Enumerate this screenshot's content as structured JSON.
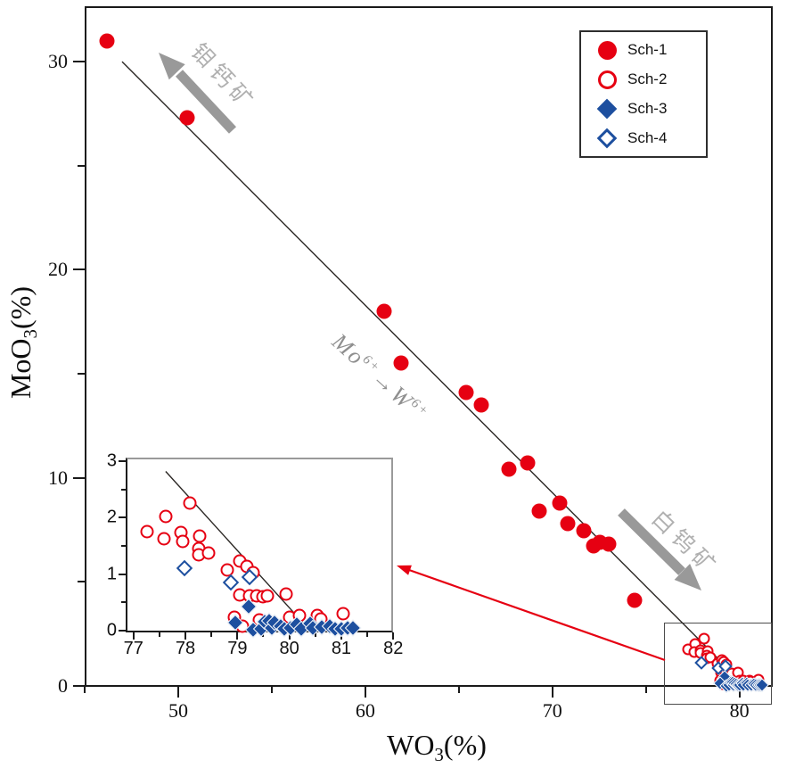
{
  "colors": {
    "red": "#e60012",
    "blue": "#1d4f9f",
    "axis": "#1a1a1a",
    "trend_line": "#2b2724",
    "gray_arrow": "#999999",
    "gray_text": "#b0b0b0",
    "substitution_text": "#8f8f8f"
  },
  "axes": {
    "x": {
      "title_pre": "WO",
      "title_sub": "3",
      "title_post": "(%)",
      "major_ticks": [
        50,
        60,
        70,
        80
      ],
      "minor_ticks": [
        45,
        55,
        65,
        75
      ],
      "range": [
        45,
        81.8
      ]
    },
    "y": {
      "title_pre": "MoO",
      "title_sub": "3",
      "title_post": "(%)",
      "major_ticks": [
        0,
        10,
        20,
        30
      ],
      "minor_ticks": [
        5,
        15,
        25
      ],
      "range": [
        0,
        32.6
      ]
    }
  },
  "inset": {
    "x_major_ticks": [
      77,
      78,
      79,
      80,
      81,
      82
    ],
    "x_minor_ticks": [
      77.5,
      78.5,
      79.5,
      80.5,
      81.5
    ],
    "y_major_ticks": [
      0,
      1,
      2,
      3
    ],
    "y_minor_ticks": [
      0.5,
      1.5,
      2.5
    ],
    "x_range": [
      77,
      82
    ],
    "y_range": [
      0,
      3
    ]
  },
  "legend": {
    "items": [
      {
        "label": "Sch-1",
        "marker": "filled-circle",
        "color": "#e60012"
      },
      {
        "label": "Sch-2",
        "marker": "open-circle",
        "color": "#e60012"
      },
      {
        "label": "Sch-3",
        "marker": "filled-diamond",
        "color": "#1d4f9f"
      },
      {
        "label": "Sch-4",
        "marker": "open-diamond",
        "color": "#1d4f9f"
      }
    ]
  },
  "annotations": {
    "powellite": "钼钙矿",
    "scheelite": "白钨矿",
    "substitution": {
      "el1": "Mo",
      "sup1": "6+",
      "arrow": "→",
      "el2": "W",
      "sup2": "6+"
    }
  },
  "chart_data": {
    "type": "scatter",
    "xlabel": "WO3(%)",
    "ylabel": "MoO3(%)",
    "x_range_main": [
      45,
      81.8
    ],
    "y_range_main": [
      0,
      32.6
    ],
    "inset_x_range": [
      77,
      82
    ],
    "inset_y_range": [
      0,
      3
    ],
    "series": [
      {
        "name": "Sch-1",
        "marker": "filled-circle",
        "color": "#e60012",
        "in_inset": false,
        "points": [
          [
            46.2,
            31.0
          ],
          [
            50.5,
            27.3
          ],
          [
            61.0,
            18.0
          ],
          [
            61.9,
            15.5
          ],
          [
            65.4,
            14.1
          ],
          [
            66.2,
            13.5
          ],
          [
            67.7,
            10.4
          ],
          [
            68.7,
            10.7
          ],
          [
            69.3,
            8.4
          ],
          [
            70.4,
            8.8
          ],
          [
            70.8,
            7.8
          ],
          [
            71.7,
            7.45
          ],
          [
            72.2,
            6.75
          ],
          [
            72.55,
            6.9
          ],
          [
            73.0,
            6.8
          ],
          [
            74.4,
            4.1
          ]
        ]
      },
      {
        "name": "Sch-2",
        "marker": "open-circle",
        "color": "#e60012",
        "in_inset": true,
        "points": [
          [
            77.27,
            1.75
          ],
          [
            77.63,
            2.03
          ],
          [
            77.59,
            1.62
          ],
          [
            77.92,
            1.73
          ],
          [
            77.94,
            1.58
          ],
          [
            78.09,
            2.26
          ],
          [
            78.28,
            1.67
          ],
          [
            78.25,
            1.45
          ],
          [
            78.26,
            1.34
          ],
          [
            78.45,
            1.37
          ],
          [
            78.81,
            1.08
          ],
          [
            79.05,
            1.24
          ],
          [
            79.18,
            1.14
          ],
          [
            79.31,
            1.02
          ],
          [
            79.04,
            0.63
          ],
          [
            79.24,
            0.61
          ],
          [
            79.38,
            0.62
          ],
          [
            79.49,
            0.6
          ],
          [
            79.58,
            0.62
          ],
          [
            79.94,
            0.64
          ],
          [
            78.95,
            0.24
          ],
          [
            79.1,
            0.08
          ],
          [
            79.42,
            0.19
          ],
          [
            80.01,
            0.24
          ],
          [
            80.2,
            0.27
          ],
          [
            80.54,
            0.27
          ],
          [
            80.61,
            0.2
          ],
          [
            81.04,
            0.3
          ]
        ]
      },
      {
        "name": "Sch-3",
        "marker": "filled-diamond",
        "color": "#1d4f9f",
        "in_inset": true,
        "points": [
          [
            79.21,
            0.42
          ],
          [
            78.96,
            0.15
          ],
          [
            79.3,
            0.02
          ],
          [
            79.45,
            0.03
          ],
          [
            79.53,
            0.16
          ],
          [
            79.62,
            0.17
          ],
          [
            79.66,
            0.05
          ],
          [
            79.72,
            0.14
          ],
          [
            79.83,
            0.08
          ],
          [
            79.91,
            0.03
          ],
          [
            80.03,
            0.04
          ],
          [
            80.14,
            0.11
          ],
          [
            80.23,
            0.03
          ],
          [
            80.4,
            0.13
          ],
          [
            80.46,
            0.05
          ],
          [
            80.63,
            0.06
          ],
          [
            80.77,
            0.08
          ],
          [
            80.88,
            0.03
          ],
          [
            81.0,
            0.03
          ],
          [
            81.12,
            0.04
          ],
          [
            81.22,
            0.04
          ]
        ]
      },
      {
        "name": "Sch-4",
        "marker": "open-diamond",
        "color": "#1d4f9f",
        "in_inset": true,
        "points": [
          [
            77.98,
            1.1
          ],
          [
            78.87,
            0.86
          ],
          [
            79.24,
            0.94
          ]
        ]
      }
    ],
    "trend_line_main": {
      "x1": 47.0,
      "y1": 30.0,
      "x2": 80.2,
      "y2": 0.1
    },
    "trend_line_inset": {
      "x1": 77.62,
      "y1": 2.82,
      "x2": 80.35,
      "y2": 0.05
    }
  }
}
